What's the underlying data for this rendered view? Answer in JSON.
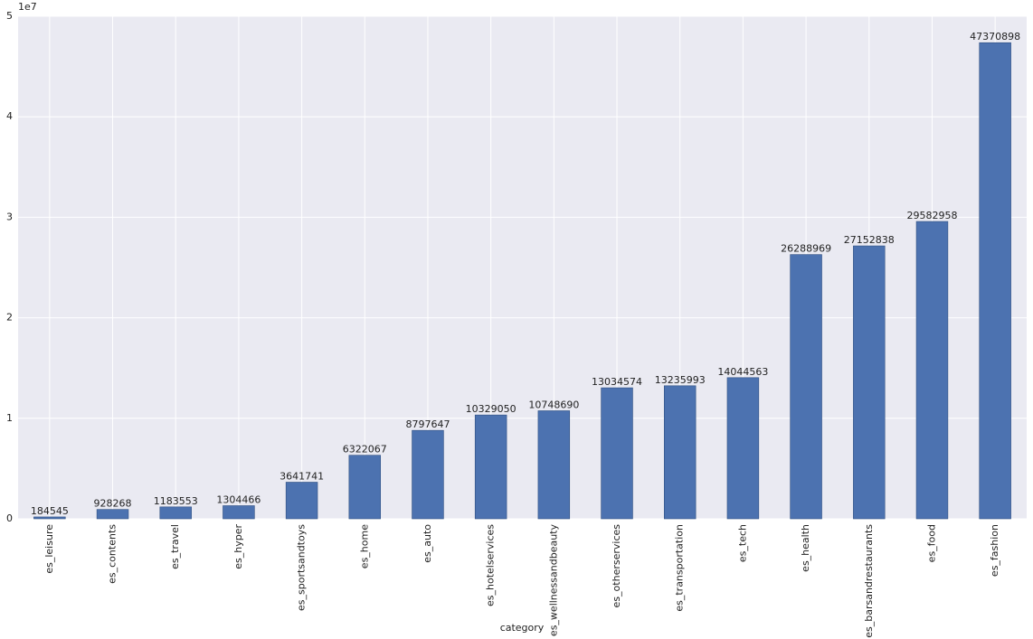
{
  "chart_data": {
    "type": "bar",
    "x_label": "category",
    "y_offset_label": "1e7",
    "categories": [
      "es_leisure",
      "es_contents",
      "es_travel",
      "es_hyper",
      "es_sportsandtoys",
      "es_home",
      "es_auto",
      "es_hotelservices",
      "es_wellnessandbeauty",
      "es_otherservices",
      "es_transportation",
      "es_tech",
      "es_health",
      "es_barsandrestaurants",
      "es_food",
      "es_fashion"
    ],
    "values": [
      184545,
      928268,
      1183553,
      1304466,
      3641741,
      6322067,
      8797647,
      10329050,
      10748690,
      13034574,
      13235993,
      14044563,
      26288969,
      27152838,
      29582958,
      47370898
    ],
    "color": "#4c72b0",
    "ylim": [
      0,
      50000000
    ],
    "yticks": [
      {
        "value": 0,
        "label": "0"
      },
      {
        "value": 10000000,
        "label": "1"
      },
      {
        "value": 20000000,
        "label": "2"
      },
      {
        "value": 30000000,
        "label": "3"
      },
      {
        "value": 40000000,
        "label": "4"
      },
      {
        "value": 50000000,
        "label": "5"
      }
    ],
    "grid": true
  }
}
